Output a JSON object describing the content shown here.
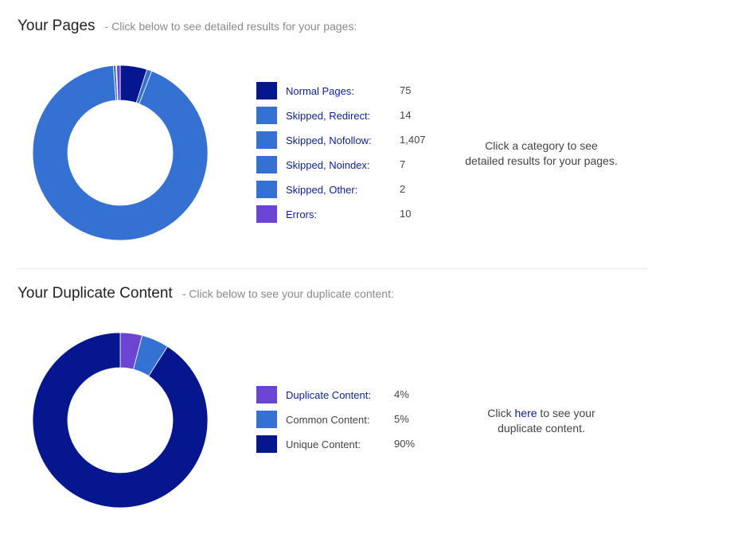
{
  "pages_section": {
    "title": "Your Pages",
    "subtitle": "- Click below to see detailed results for your pages:",
    "note_line1": "Click a category to see",
    "note_line2": "detailed results for your pages.",
    "legend": [
      {
        "label": "Normal Pages:",
        "value": "75",
        "color": "#06168f"
      },
      {
        "label": "Skipped, Redirect:",
        "value": "14",
        "color": "#3571d3"
      },
      {
        "label": "Skipped, Nofollow:",
        "value": "1,407",
        "color": "#3571d3"
      },
      {
        "label": "Skipped, Noindex:",
        "value": "7",
        "color": "#3571d3"
      },
      {
        "label": "Skipped, Other:",
        "value": "2",
        "color": "#3571d3"
      },
      {
        "label": "Errors:",
        "value": "10",
        "color": "#6c44d4"
      }
    ]
  },
  "duplicate_section": {
    "title": "Your Duplicate Content",
    "subtitle": "- Click below to see your duplicate content:",
    "note_prefix": "Click ",
    "note_link": "here",
    "note_suffix": " to see your",
    "note_line2": "duplicate content.",
    "legend": [
      {
        "label": "Duplicate Content:",
        "value": "4%",
        "color": "#6c44d4"
      },
      {
        "label": "Common Content:",
        "value": "5%",
        "color": "#3571d3"
      },
      {
        "label": "Unique Content:",
        "value": "90%",
        "color": "#06168f"
      }
    ]
  },
  "chart_data": [
    {
      "type": "pie",
      "categories": [
        "Normal Pages",
        "Skipped, Redirect",
        "Skipped, Nofollow",
        "Skipped, Noindex",
        "Skipped, Other",
        "Errors"
      ],
      "values": [
        75,
        14,
        1407,
        7,
        2,
        10
      ],
      "colors": [
        "#06168f",
        "#3571d3",
        "#3571d3",
        "#3571d3",
        "#3571d3",
        "#6c44d4"
      ]
    },
    {
      "type": "pie",
      "categories": [
        "Duplicate Content",
        "Common Content",
        "Unique Content"
      ],
      "values": [
        4,
        5,
        90
      ],
      "colors": [
        "#6c44d4",
        "#3571d3",
        "#06168f"
      ]
    }
  ]
}
